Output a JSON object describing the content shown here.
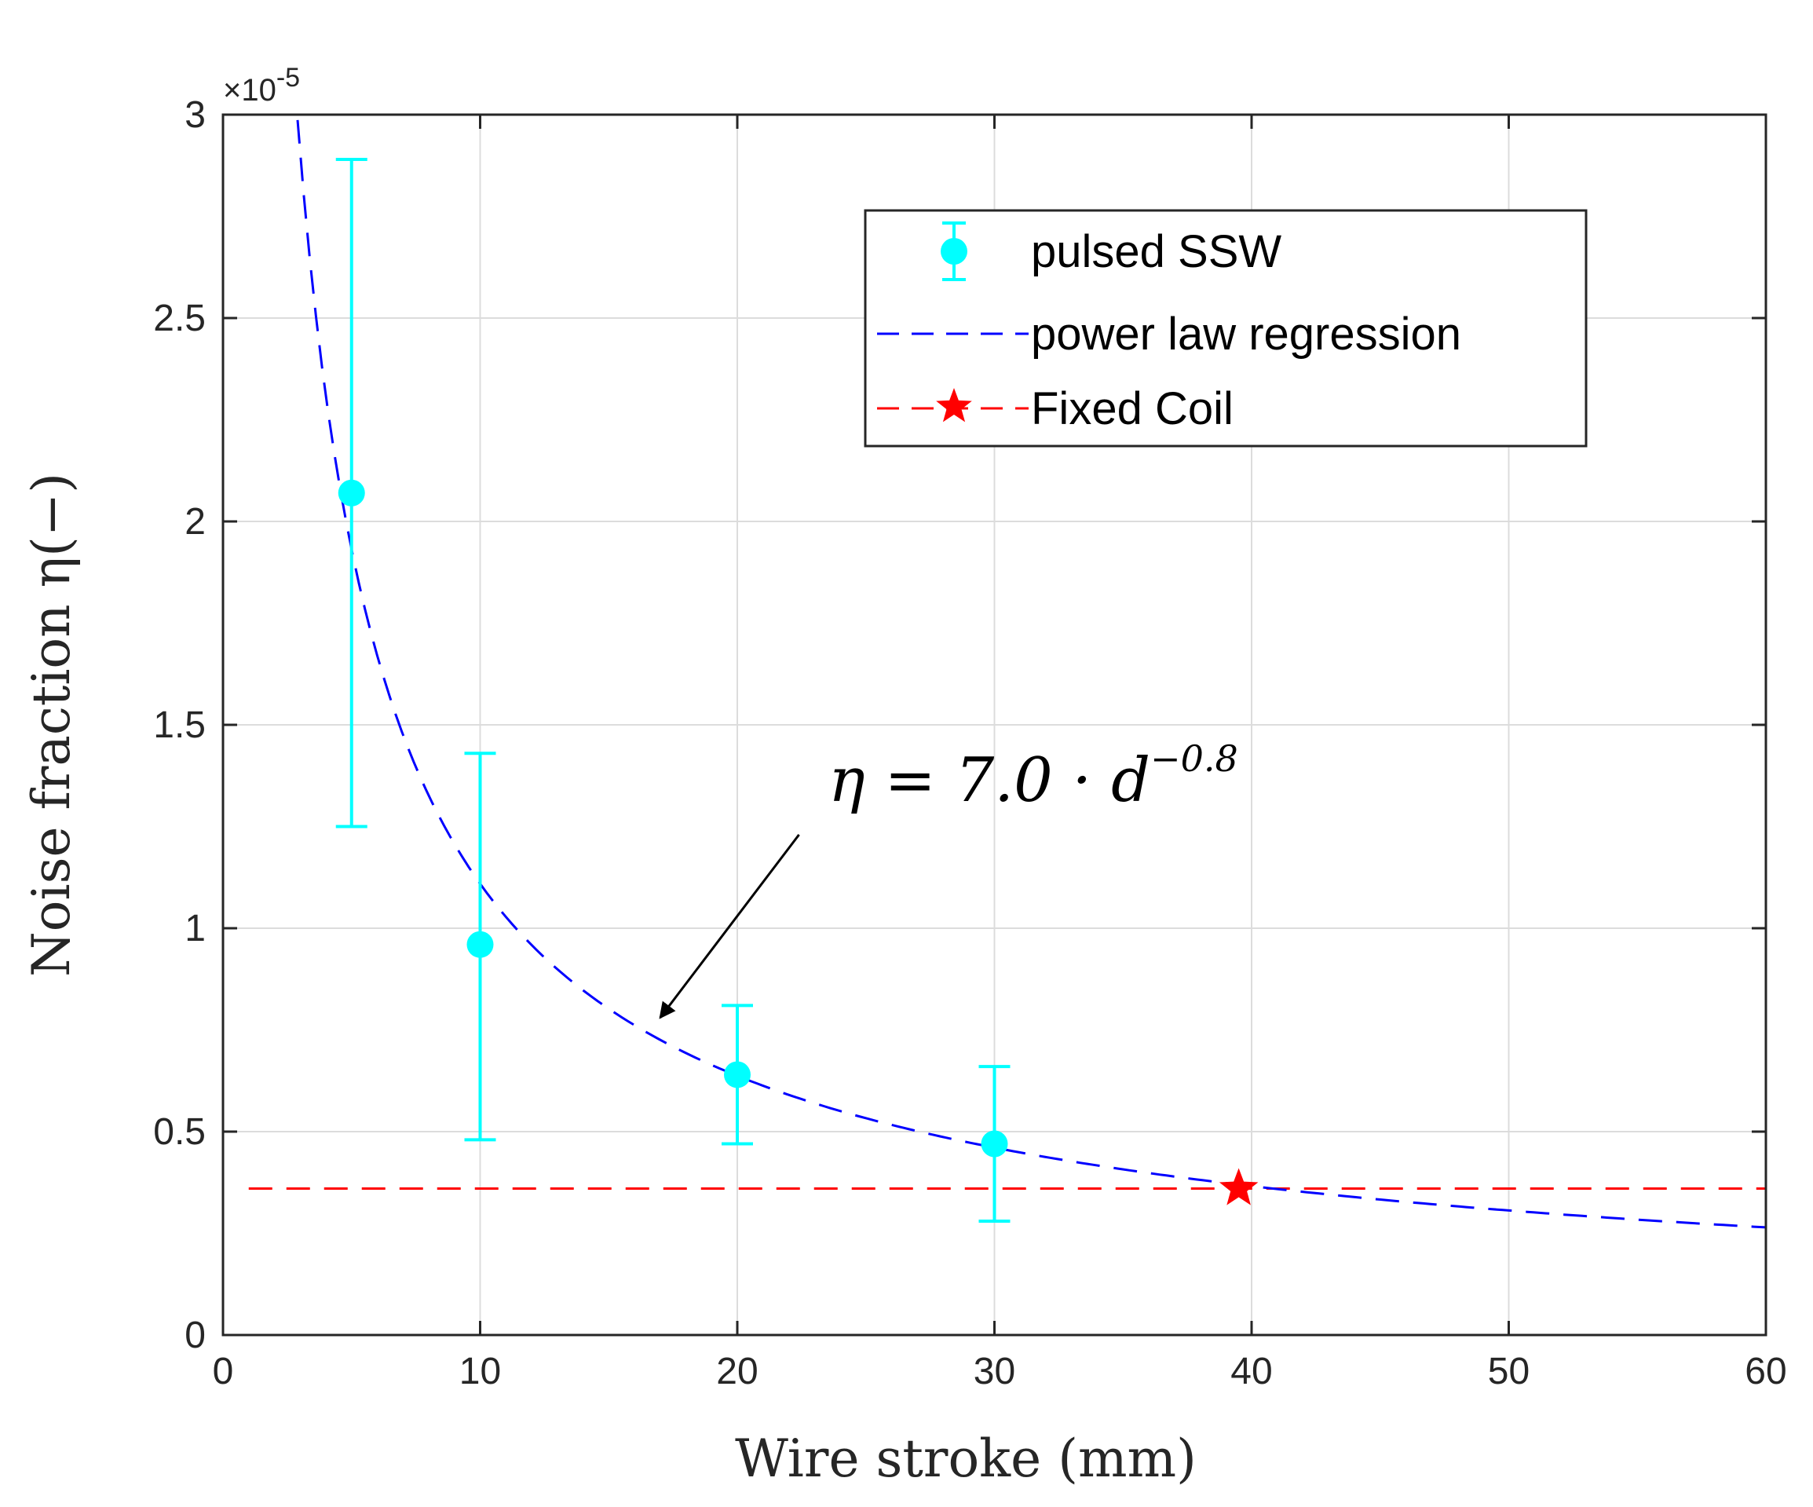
{
  "chart_data": {
    "type": "scatter",
    "xlabel": "Wire stroke (mm)",
    "ylabel": "Noise fraction η(−)",
    "xlim": [
      0,
      60
    ],
    "ylim": [
      0,
      3
    ],
    "y_multiplier": "×10",
    "y_multiplier_exponent": "-5",
    "x_ticks": [
      0,
      10,
      20,
      30,
      40,
      50,
      60
    ],
    "x_tick_labels": [
      "0",
      "10",
      "20",
      "30",
      "40",
      "50",
      "60"
    ],
    "y_ticks": [
      0,
      0.5,
      1,
      1.5,
      2,
      2.5,
      3
    ],
    "y_tick_labels": [
      "0",
      "0.5",
      "1",
      "1.5",
      "2",
      "2.5",
      "3"
    ],
    "grid": true,
    "legend_position": "top-right",
    "series": [
      {
        "name": "pulsed SSW",
        "kind": "errorbar",
        "color": "#00ffff",
        "x": [
          5,
          10,
          20,
          30
        ],
        "y": [
          2.07,
          0.96,
          0.64,
          0.47
        ],
        "y_lower": [
          1.25,
          0.48,
          0.47,
          0.28
        ],
        "y_upper": [
          2.89,
          1.43,
          0.81,
          0.66
        ]
      },
      {
        "name": "power law regression",
        "kind": "curve",
        "color": "#0000ff",
        "style": "dashed",
        "equation": "eta = 7.0 * d^-0.8",
        "coefficient": 7.0,
        "exponent": -0.8,
        "x_start": 2.9,
        "x_end": 60,
        "curve_points": [
          {
            "x": 2.9,
            "y": 3.0
          },
          {
            "x": 5,
            "y": 1.93
          },
          {
            "x": 10,
            "y": 1.1
          },
          {
            "x": 20,
            "y": 0.63
          },
          {
            "x": 30,
            "y": 0.45
          },
          {
            "x": 40,
            "y": 0.36
          },
          {
            "x": 50,
            "y": 0.3
          },
          {
            "x": 60,
            "y": 0.26
          }
        ]
      },
      {
        "name": "Fixed Coil",
        "kind": "hline_marker",
        "color": "#ff0000",
        "style": "dashed",
        "y": 0.36,
        "x_start": 1,
        "x_end": 60,
        "marker_x": 39.5,
        "marker_y": 0.36
      }
    ],
    "annotation": {
      "text_main": "η = 7.0 · d",
      "text_sup": "−0.8",
      "arrow_from": {
        "x": 22.4,
        "y": 1.23
      },
      "arrow_to": {
        "x": 17,
        "y": 0.78
      }
    }
  }
}
